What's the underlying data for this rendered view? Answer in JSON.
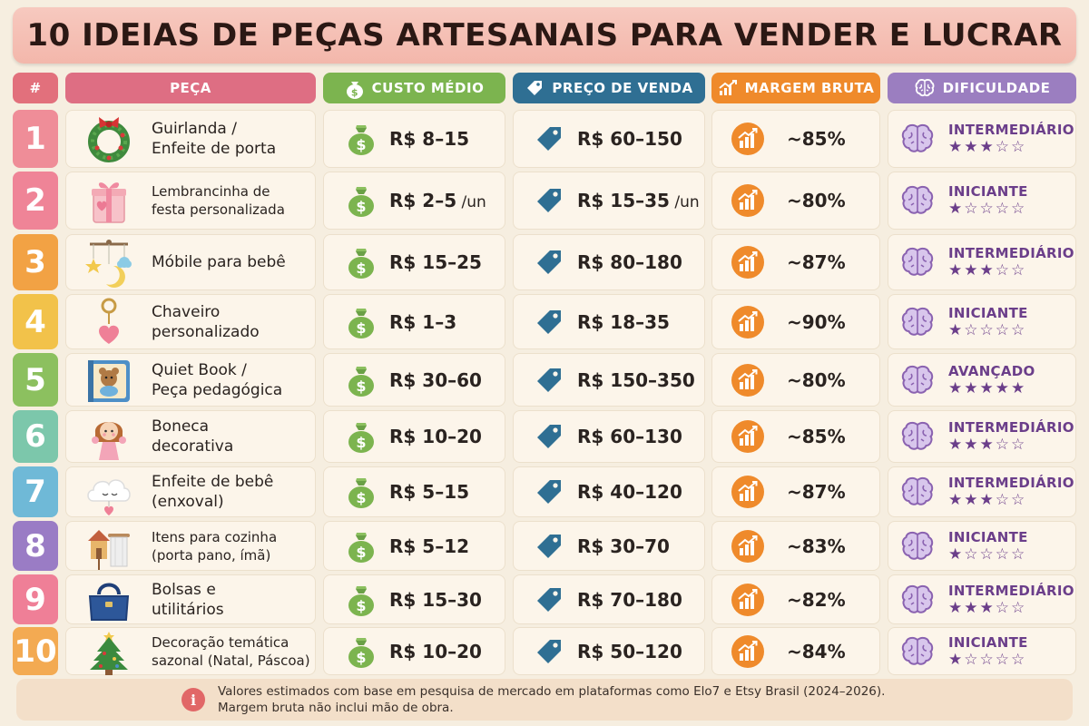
{
  "title": "10 IDEIAS DE PEÇAS ARTESANAIS PARA VENDER E LUCRAR",
  "headers": {
    "num": "#",
    "piece": "PEÇA",
    "cost": "CUSTO MÉDIO",
    "price": "PREÇO DE VENDA",
    "margin": "MARGEM BRUTA",
    "difficulty": "DIFICULDADE"
  },
  "colors": {
    "num_header": "#e2707c",
    "piece_header": "#de6e83",
    "cost_header": "#7cb44f",
    "price_header": "#2f6f93",
    "margin_header": "#ef8a2b",
    "difficulty_header": "#9b7ec0",
    "row_numbers": [
      "#ef8d98",
      "#ef8497",
      "#f2a244",
      "#f2c24a",
      "#8cc05f",
      "#7cc7ab",
      "#6fb9d7",
      "#9a7cc5",
      "#ef7f97",
      "#f3aa52"
    ]
  },
  "rows": [
    {
      "num": "1",
      "name_lines": [
        "Guirlanda /",
        "Enfeite de porta"
      ],
      "image": "wreath-icon",
      "cost": "R$ 8–15",
      "cost_unit": "",
      "price": "R$ 60–150",
      "price_unit": "",
      "margin": "~85%",
      "level": "INTERMEDIÁRIO",
      "stars": 3
    },
    {
      "num": "2",
      "name_lines": [
        "Lembrancinha de",
        "festa personalizada"
      ],
      "image": "gift-box-icon",
      "cost": "R$ 2–5",
      "cost_unit": " /un",
      "price": "R$ 15–35",
      "price_unit": " /un",
      "margin": "~80%",
      "level": "INICIANTE",
      "stars": 1
    },
    {
      "num": "3",
      "name_lines": [
        "Móbile para bebê"
      ],
      "image": "baby-mobile-icon",
      "cost": "R$ 15–25",
      "cost_unit": "",
      "price": "R$ 80–180",
      "price_unit": "",
      "margin": "~87%",
      "level": "INTERMEDIÁRIO",
      "stars": 3
    },
    {
      "num": "4",
      "name_lines": [
        "Chaveiro",
        "personalizado"
      ],
      "image": "keychain-icon",
      "cost": "R$ 1–3",
      "cost_unit": "",
      "price": "R$ 18–35",
      "price_unit": "",
      "margin": "~90%",
      "level": "INICIANTE",
      "stars": 1
    },
    {
      "num": "5",
      "name_lines": [
        "Quiet Book /",
        "Peça pedagógica"
      ],
      "image": "quiet-book-icon",
      "cost": "R$ 30–60",
      "cost_unit": "",
      "price": "R$ 150–350",
      "price_unit": "",
      "margin": "~80%",
      "level": "AVANÇADO",
      "stars": 5
    },
    {
      "num": "6",
      "name_lines": [
        "Boneca",
        "decorativa"
      ],
      "image": "doll-icon",
      "cost": "R$ 10–20",
      "cost_unit": "",
      "price": "R$ 60–130",
      "price_unit": "",
      "margin": "~85%",
      "level": "INTERMEDIÁRIO",
      "stars": 3
    },
    {
      "num": "7",
      "name_lines": [
        "Enfeite de bebê",
        "(enxoval)"
      ],
      "image": "cloud-ornament-icon",
      "cost": "R$ 5–15",
      "cost_unit": "",
      "price": "R$ 40–120",
      "price_unit": "",
      "margin": "~87%",
      "level": "INTERMEDIÁRIO",
      "stars": 3
    },
    {
      "num": "8",
      "name_lines": [
        "Itens para cozinha",
        "(porta pano, ímã)"
      ],
      "image": "kitchen-items-icon",
      "cost": "R$ 5–12",
      "cost_unit": "",
      "price": "R$ 30–70",
      "price_unit": "",
      "margin": "~83%",
      "level": "INICIANTE",
      "stars": 1
    },
    {
      "num": "9",
      "name_lines": [
        "Bolsas e",
        "utilitários"
      ],
      "image": "handbag-icon",
      "cost": "R$ 15–30",
      "cost_unit": "",
      "price": "R$ 70–180",
      "price_unit": "",
      "margin": "~82%",
      "level": "INTERMEDIÁRIO",
      "stars": 3
    },
    {
      "num": "10",
      "name_lines": [
        "Decoração temática",
        "sazonal (Natal, Páscoa)"
      ],
      "image": "christmas-tree-icon",
      "cost": "R$ 10–20",
      "cost_unit": "",
      "price": "R$ 50–120",
      "price_unit": "",
      "margin": "~84%",
      "level": "INICIANTE",
      "stars": 1
    }
  ],
  "footer": {
    "info_glyph": "i",
    "line1": "Valores estimados com base em pesquisa de mercado em plataformas como Elo7 e Etsy Brasil (2024–2026).",
    "line2": "Margem bruta não inclui mão de obra."
  }
}
